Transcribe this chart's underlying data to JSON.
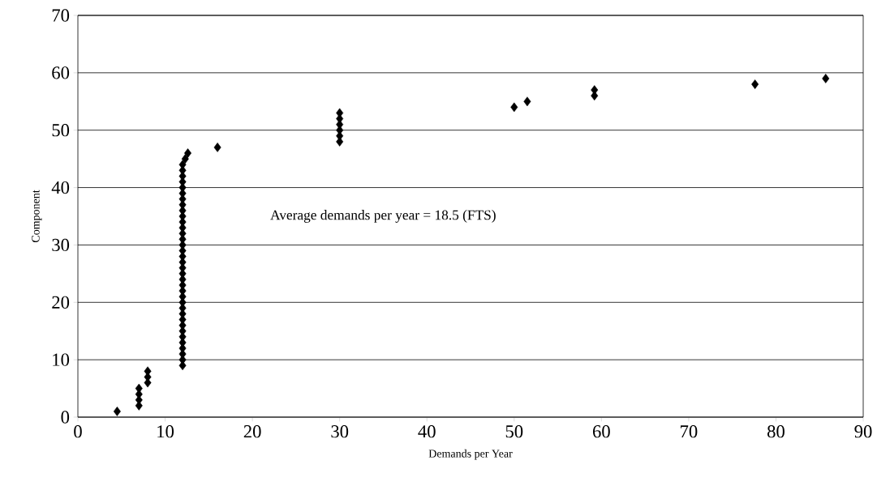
{
  "chart_data": {
    "type": "scatter",
    "xlabel": "Demands per Year",
    "ylabel": "Component",
    "x": [
      4.5,
      7,
      7,
      7,
      7,
      8,
      8,
      8,
      12,
      12,
      12,
      12,
      12,
      12,
      12,
      12,
      12,
      12,
      12,
      12,
      12,
      12,
      12,
      12,
      12,
      12,
      12,
      12,
      12,
      12,
      12,
      12,
      12,
      12,
      12,
      12,
      12,
      12,
      12,
      12,
      12,
      12,
      12,
      12,
      12.3,
      12.6,
      16,
      30,
      30,
      30,
      30,
      30,
      30,
      50,
      51.5,
      59.2,
      59.2,
      77.6,
      85.7
    ],
    "series": [
      {
        "color": "#000000",
        "values": [
          1,
          2,
          3,
          4,
          5,
          6,
          7,
          8,
          9,
          10,
          11,
          12,
          13,
          14,
          15,
          16,
          17,
          18,
          19,
          20,
          21,
          22,
          23,
          24,
          25,
          26,
          27,
          28,
          29,
          30,
          31,
          32,
          33,
          34,
          35,
          36,
          37,
          38,
          39,
          40,
          41,
          42,
          43,
          44,
          45,
          46,
          47,
          48,
          49,
          50,
          51,
          52,
          53,
          54,
          55,
          56,
          57,
          58,
          59
        ]
      }
    ],
    "xlim": [
      0,
      90
    ],
    "xticks": [
      0,
      10,
      20,
      30,
      40,
      50,
      60,
      70,
      80,
      90
    ],
    "ylim": [
      0,
      70
    ],
    "yticks": [
      0,
      10,
      20,
      30,
      40,
      50,
      60,
      70
    ],
    "grid": "y",
    "marker": "diamond",
    "annotations": [
      "Average demands per year = 18.5 (FTS)"
    ]
  }
}
